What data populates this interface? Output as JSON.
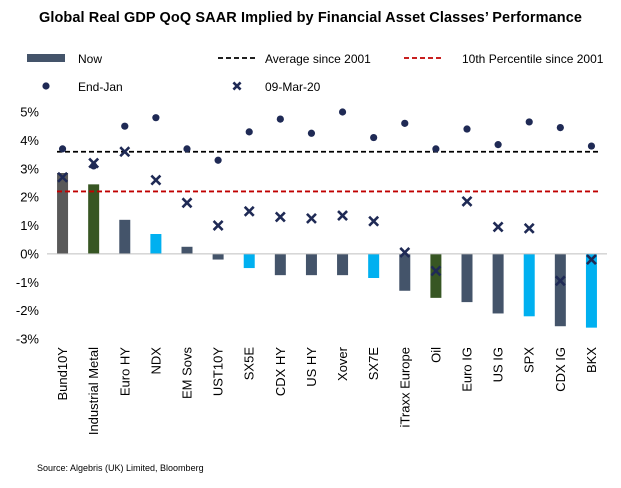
{
  "title": "Global Real GDP QoQ SAAR Implied by Financial Asset Classes’ Performance",
  "source": "Source: Algebris (UK) Limited, Bloomberg",
  "chart_data": {
    "type": "bar",
    "categories": [
      "Bund10Y",
      "Industrial Metal",
      "Euro HY",
      "NDX",
      "EM Sovs",
      "UST10Y",
      "SX5E",
      "CDX HY",
      "US HY",
      "Xover",
      "SX7E",
      "iTraxx Europe",
      "Oil",
      "Euro IG",
      "US IG",
      "SPX",
      "CDX IG",
      "BKX"
    ],
    "series": [
      {
        "name": "Now",
        "type": "bar",
        "values": [
          2.85,
          2.45,
          1.2,
          0.7,
          0.25,
          -0.2,
          -0.5,
          -0.75,
          -0.75,
          -0.75,
          -0.85,
          -1.3,
          -1.55,
          -1.7,
          -2.1,
          -2.2,
          -2.55,
          -2.6
        ],
        "colors": [
          "#595959",
          "#375623",
          "#44546A",
          "#00B0F0",
          "#44546A",
          "#44546A",
          "#00B0F0",
          "#44546A",
          "#44546A",
          "#44546A",
          "#00B0F0",
          "#44546A",
          "#375623",
          "#44546A",
          "#44546A",
          "#00B0F0",
          "#44546A",
          "#00B0F0"
        ]
      },
      {
        "name": "End-Jan",
        "type": "scatter",
        "marker": "circle",
        "color": "#1F2A55",
        "values": [
          3.7,
          3.1,
          4.5,
          4.8,
          3.7,
          3.3,
          4.3,
          4.75,
          4.25,
          5.0,
          4.1,
          4.6,
          3.7,
          4.4,
          3.85,
          4.65,
          4.45,
          3.8
        ]
      },
      {
        "name": "09-Mar-20",
        "type": "scatter",
        "marker": "x",
        "color": "#1F2A55",
        "values": [
          2.7,
          3.2,
          3.6,
          2.6,
          1.8,
          1.0,
          1.5,
          1.3,
          1.25,
          1.35,
          1.15,
          0.05,
          -0.6,
          1.85,
          0.95,
          0.9,
          -0.95,
          -0.2
        ]
      }
    ],
    "reference_lines": [
      {
        "name": "Average since 2001",
        "value": 3.6,
        "color": "#000000",
        "style": "dashed"
      },
      {
        "name": "10th Percentile since 2001",
        "value": 2.2,
        "color": "#C00000",
        "style": "dashed"
      }
    ],
    "ylim": [
      -3,
      5
    ],
    "yticks": [
      -3,
      -2,
      -1,
      0,
      1,
      2,
      3,
      4,
      5
    ],
    "ytick_labels": [
      "-3%",
      "-2%",
      "-1%",
      "0%",
      "1%",
      "2%",
      "3%",
      "4%",
      "5%"
    ],
    "legend_position": "top",
    "grid": false
  }
}
